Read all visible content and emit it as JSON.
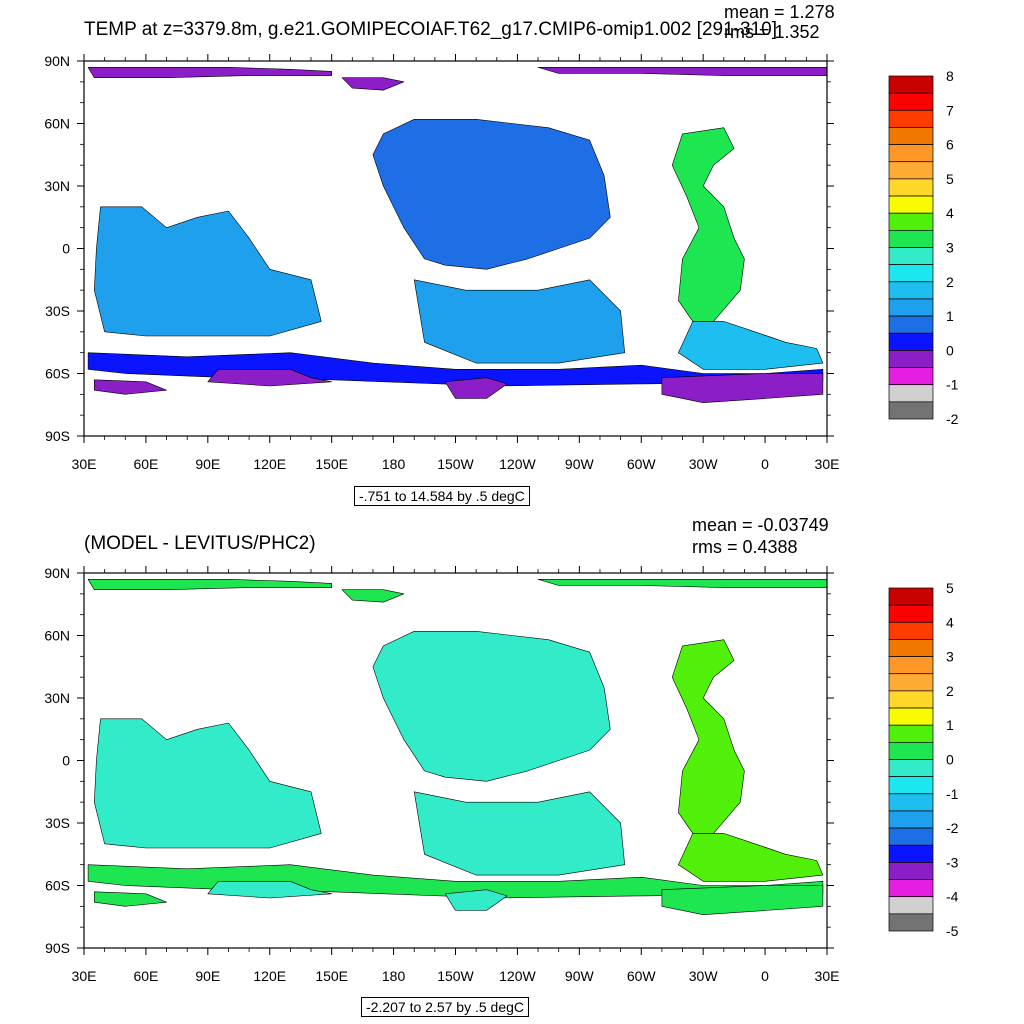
{
  "colors": {
    "bg": "#ffffff",
    "ink": "#000000",
    "scale": [
      "#737373",
      "#d0d0d0",
      "#e61ee1",
      "#8c1ec8",
      "#0a14ff",
      "#1e6ee6",
      "#1ea0ec",
      "#1ebef0",
      "#1ee6f0",
      "#32ebc8",
      "#1ee650",
      "#50f00a",
      "#fafa00",
      "#ffd728",
      "#ffaa32",
      "#ff9628",
      "#f07800",
      "#ff3c00",
      "#ff0000",
      "#c80000"
    ]
  },
  "chart_data": [
    {
      "type": "heatmap",
      "title": "TEMP at z=3379.8m, g.e21.GOMIPECOIAF.T62_g17.CMIP6-omip1.002 [291-310]",
      "mean_label": "mean = 1.278",
      "rms_label": "rms = 1.352",
      "range_label": "-.751 to 14.584 by .5 degC",
      "x_ticks": [
        "30E",
        "60E",
        "90E",
        "120E",
        "150E",
        "180",
        "150W",
        "120W",
        "90W",
        "60W",
        "30W",
        "0",
        "30E"
      ],
      "y_ticks": [
        "90N",
        "60N",
        "30N",
        "0",
        "30S",
        "60S",
        "90S"
      ],
      "colorbar_labels": [
        "8",
        "7",
        "6",
        "5",
        "4",
        "3",
        "2",
        "1",
        "0",
        "-1",
        "-2"
      ],
      "colorbar_range": [
        -2,
        8
      ],
      "regions": [
        {
          "name": "arctic-top",
          "value": -0.5
        },
        {
          "name": "north-pacific",
          "value": 0.7
        },
        {
          "name": "indian-ocean",
          "value": 1.2
        },
        {
          "name": "south-pacific",
          "value": 1.0
        },
        {
          "name": "north-atlantic",
          "value": 3.2
        },
        {
          "name": "south-atlantic",
          "value": 1.7
        },
        {
          "name": "southern-ocean",
          "value": 0.3
        },
        {
          "name": "weddell-sea",
          "value": -0.3
        },
        {
          "name": "ross-sea",
          "value": -0.4
        }
      ]
    },
    {
      "type": "heatmap",
      "title": "(MODEL - LEVITUS/PHC2)",
      "mean_label": "mean = -0.03749",
      "rms_label": "rms = 0.4388",
      "range_label": "-2.207 to 2.57 by .5 degC",
      "x_ticks": [
        "30E",
        "60E",
        "90E",
        "120E",
        "150E",
        "180",
        "150W",
        "120W",
        "90W",
        "60W",
        "30W",
        "0",
        "30E"
      ],
      "y_ticks": [
        "90N",
        "60N",
        "30N",
        "0",
        "30S",
        "60S",
        "90S"
      ],
      "colorbar_labels": [
        "5",
        "4",
        "3",
        "2",
        "1",
        "0",
        "-1",
        "-2",
        "-3",
        "-4",
        "-5"
      ],
      "colorbar_range": [
        -5,
        5
      ],
      "regions": [
        {
          "name": "arctic-top",
          "value": 0.3
        },
        {
          "name": "north-pacific",
          "value": -0.3
        },
        {
          "name": "indian-ocean",
          "value": -0.3
        },
        {
          "name": "south-pacific",
          "value": -0.3
        },
        {
          "name": "north-atlantic",
          "value": 0.6
        },
        {
          "name": "south-atlantic",
          "value": 0.6
        },
        {
          "name": "southern-ocean",
          "value": 0.2
        },
        {
          "name": "weddell-sea",
          "value": 0.2
        },
        {
          "name": "ross-sea",
          "value": -0.2
        }
      ]
    }
  ]
}
